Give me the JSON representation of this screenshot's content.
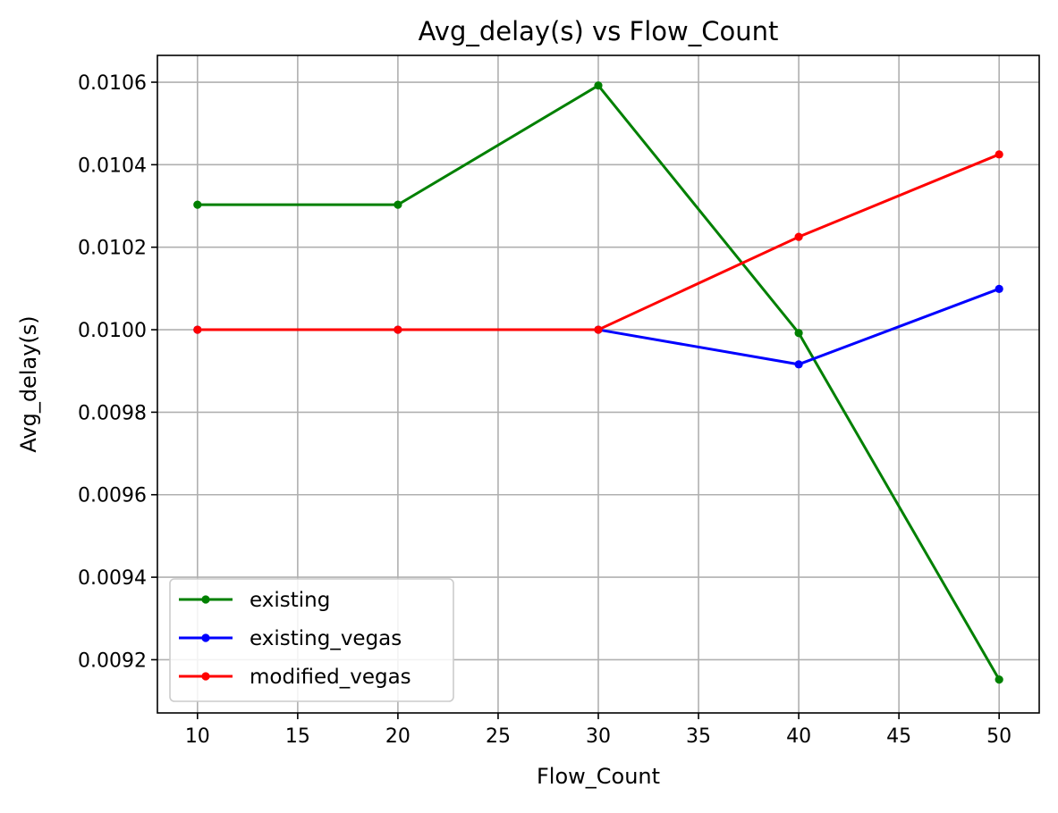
{
  "chart_data": {
    "type": "line",
    "title": "Avg_delay(s) vs Flow_Count",
    "xlabel": "Flow_Count",
    "ylabel": "Avg_delay(s)",
    "x": [
      10,
      20,
      30,
      40,
      50
    ],
    "xlim": [
      8,
      52
    ],
    "ylim": [
      0.009071,
      0.010665
    ],
    "xticks": [
      10,
      15,
      20,
      25,
      30,
      35,
      40,
      45,
      50
    ],
    "xtick_labels": [
      "10",
      "15",
      "20",
      "25",
      "30",
      "35",
      "40",
      "45",
      "50"
    ],
    "yticks": [
      0.0092,
      0.0094,
      0.0096,
      0.0098,
      0.01,
      0.0102,
      0.0104,
      0.0106
    ],
    "ytick_labels": [
      "0.0092",
      "0.0094",
      "0.0096",
      "0.0098",
      "0.0100",
      "0.0102",
      "0.0104",
      "0.0106"
    ],
    "grid": true,
    "legend_position": "lower-left",
    "series": [
      {
        "name": "existing",
        "color": "#008000",
        "marker": "circle",
        "values": [
          0.010303,
          0.010303,
          0.010592,
          0.009992,
          0.009152
        ]
      },
      {
        "name": "existing_vegas",
        "color": "#0000ff",
        "marker": "circle",
        "values": [
          0.01,
          0.01,
          0.01,
          0.009916,
          0.010099
        ]
      },
      {
        "name": "modified_vegas",
        "color": "#ff0000",
        "marker": "circle",
        "values": [
          0.01,
          0.01,
          0.01,
          0.010225,
          0.010425
        ]
      }
    ]
  }
}
